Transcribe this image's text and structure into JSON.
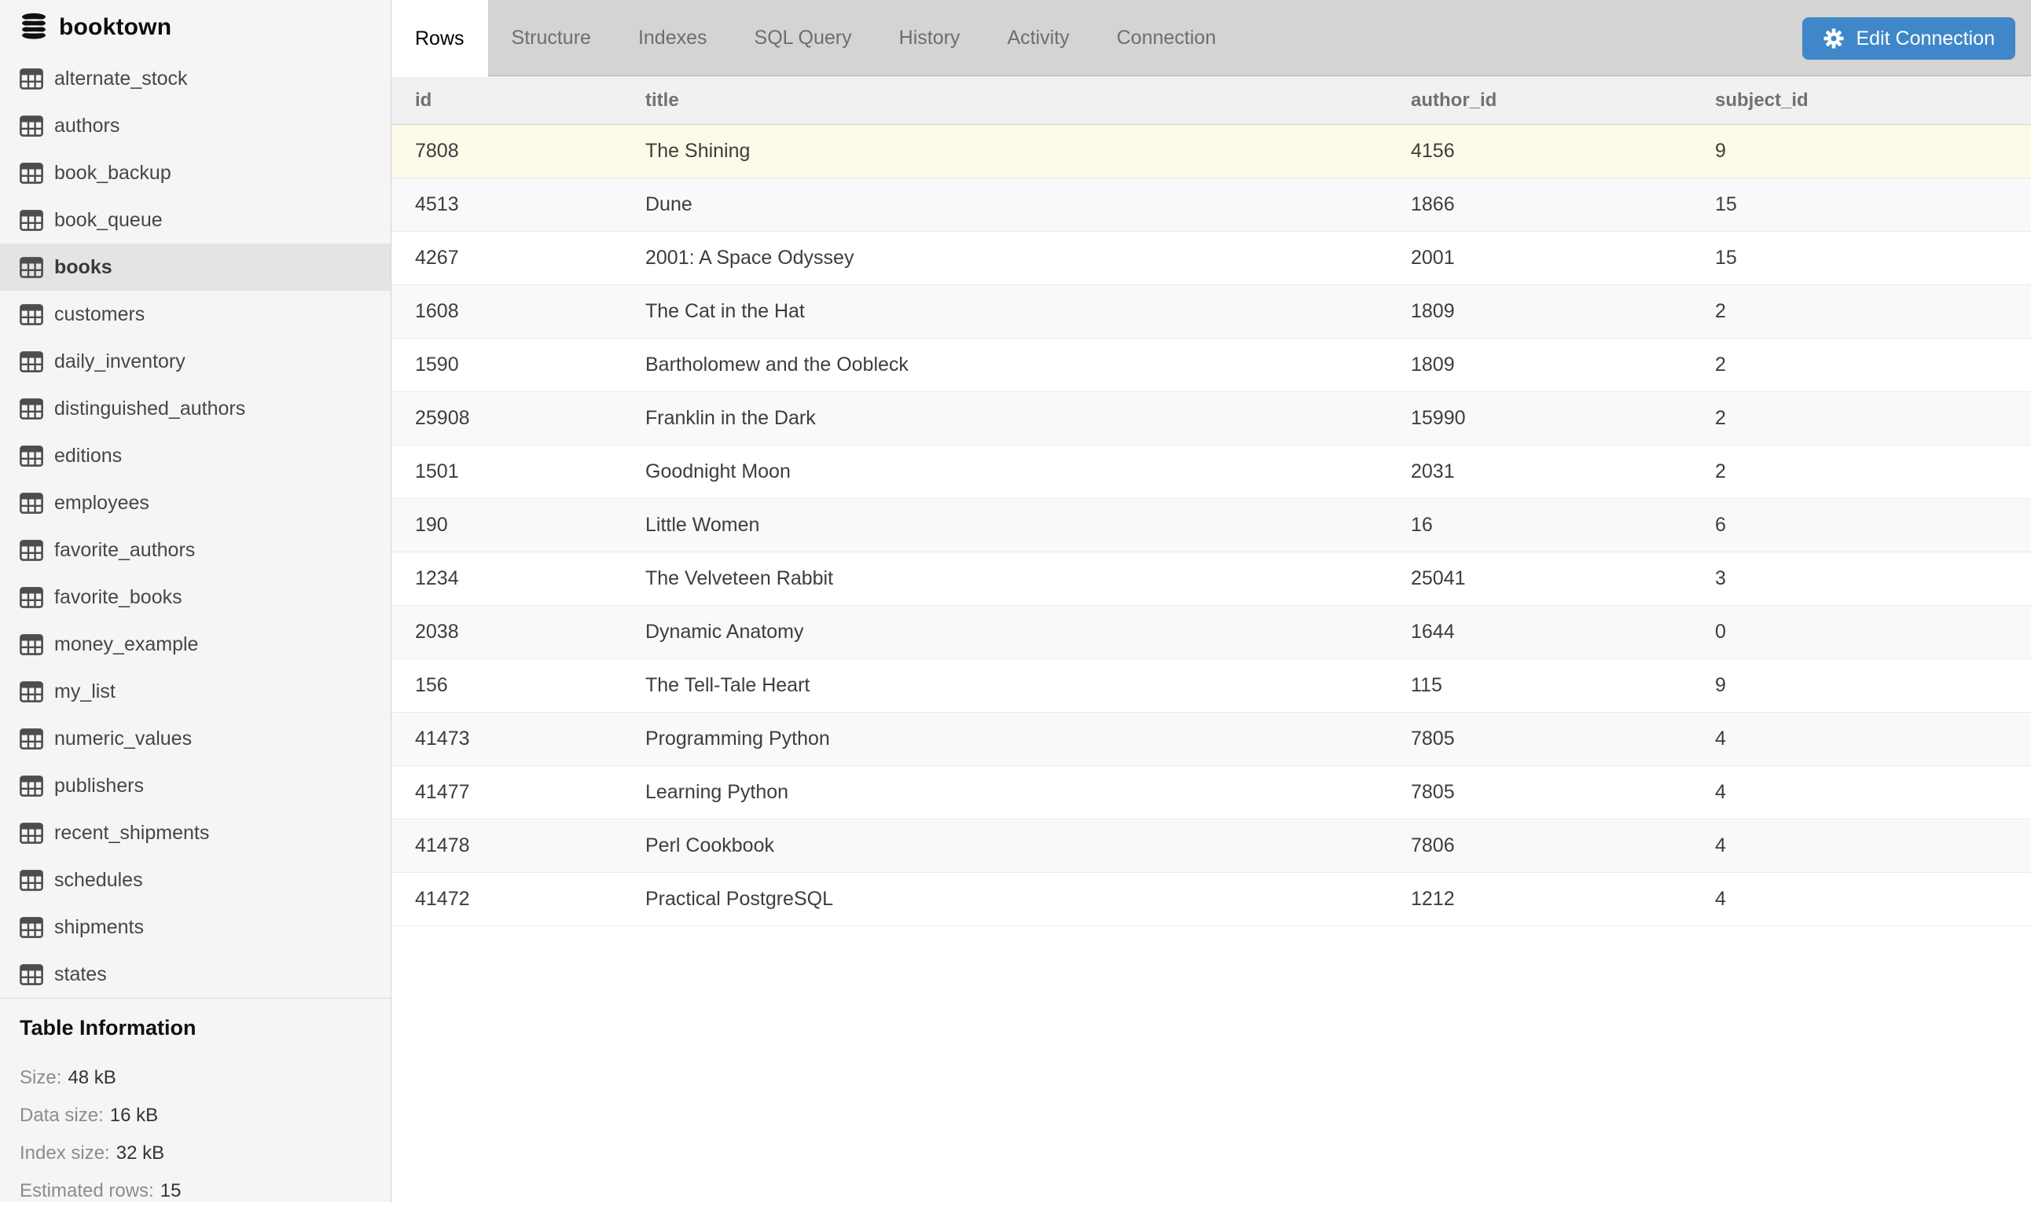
{
  "sidebar": {
    "database": "booktown",
    "tables": [
      "alternate_stock",
      "authors",
      "book_backup",
      "book_queue",
      "books",
      "customers",
      "daily_inventory",
      "distinguished_authors",
      "editions",
      "employees",
      "favorite_authors",
      "favorite_books",
      "money_example",
      "my_list",
      "numeric_values",
      "publishers",
      "recent_shipments",
      "schedules",
      "shipments",
      "states"
    ],
    "selected_table": "books",
    "table_information": {
      "title": "Table Information",
      "rows": [
        {
          "label": "Size:",
          "value": "48 kB"
        },
        {
          "label": "Data size:",
          "value": "16 kB"
        },
        {
          "label": "Index size:",
          "value": "32 kB"
        },
        {
          "label": "Estimated rows:",
          "value": "15"
        }
      ]
    }
  },
  "tabs": {
    "items": [
      "Rows",
      "Structure",
      "Indexes",
      "SQL Query",
      "History",
      "Activity",
      "Connection"
    ],
    "active": "Rows"
  },
  "toolbar": {
    "edit_connection_label": "Edit Connection"
  },
  "icons": {
    "database": "database-icon",
    "table": "table-grid-icon",
    "gear": "gear-icon"
  },
  "grid": {
    "columns": [
      "id",
      "title",
      "author_id",
      "subject_id"
    ],
    "rows": [
      [
        "7808",
        "The Shining",
        "4156",
        "9"
      ],
      [
        "4513",
        "Dune",
        "1866",
        "15"
      ],
      [
        "4267",
        "2001: A Space Odyssey",
        "2001",
        "15"
      ],
      [
        "1608",
        "The Cat in the Hat",
        "1809",
        "2"
      ],
      [
        "1590",
        "Bartholomew and the Oobleck",
        "1809",
        "2"
      ],
      [
        "25908",
        "Franklin in the Dark",
        "15990",
        "2"
      ],
      [
        "1501",
        "Goodnight Moon",
        "2031",
        "2"
      ],
      [
        "190",
        "Little Women",
        "16",
        "6"
      ],
      [
        "1234",
        "The Velveteen Rabbit",
        "25041",
        "3"
      ],
      [
        "2038",
        "Dynamic Anatomy",
        "1644",
        "0"
      ],
      [
        "156",
        "The Tell-Tale Heart",
        "115",
        "9"
      ],
      [
        "41473",
        "Programming Python",
        "7805",
        "4"
      ],
      [
        "41477",
        "Learning Python",
        "7805",
        "4"
      ],
      [
        "41478",
        "Perl Cookbook",
        "7806",
        "4"
      ],
      [
        "41472",
        "Practical PostgreSQL",
        "1212",
        "4"
      ]
    ],
    "highlighted_row_index": 0
  },
  "colors": {
    "accent_blue": "#3f87c9",
    "row_highlight_yellow": "#fbfbe7",
    "row_alternate_gray": "#f9f9f9",
    "sidebar_selected_gray": "#e4e4e4"
  }
}
